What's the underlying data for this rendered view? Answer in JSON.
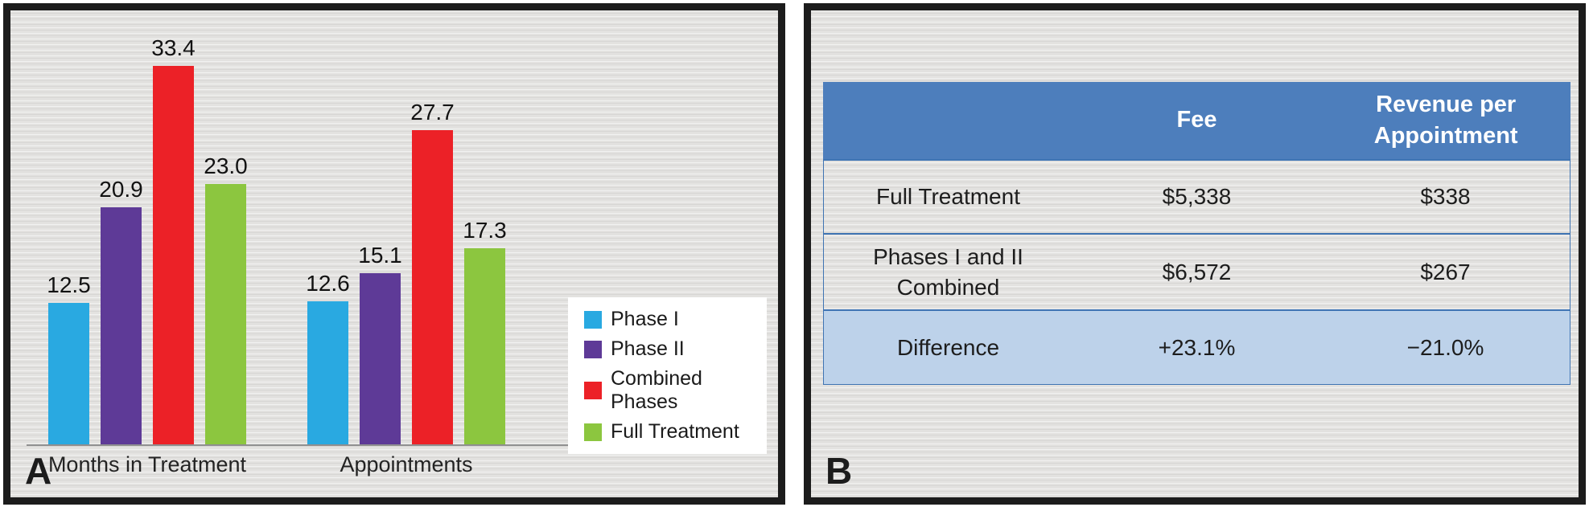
{
  "panel_a": {
    "label": "A"
  },
  "panel_b": {
    "label": "B"
  },
  "colors": {
    "phase1_blue": "#29A9E1",
    "phase2_purple": "#5E3A97",
    "combined_red": "#EC2127",
    "full_treatment_green": "#8CC63F",
    "table_header_blue": "#4D7EBC",
    "table_highlight_blue": "#BDD2EA",
    "table_border_blue": "#3F74B3",
    "panel_background_gray": "#E3E2E0",
    "panel_border_black": "#1C1C1C"
  },
  "chart_data": [
    {
      "type": "bar",
      "title": "",
      "xlabel": "",
      "ylabel": "",
      "categories": [
        "Months in Treatment",
        "Appointments"
      ],
      "series": [
        {
          "name": "Phase I",
          "color": "#29A9E1",
          "values": [
            12.5,
            12.6
          ]
        },
        {
          "name": "Phase II",
          "color": "#5E3A97",
          "values": [
            20.9,
            15.1
          ]
        },
        {
          "name": "Combined Phases",
          "color": "#EC2127",
          "values": [
            33.4,
            27.7
          ]
        },
        {
          "name": "Full Treatment",
          "color": "#8CC63F",
          "values": [
            23.0,
            17.3
          ]
        }
      ],
      "value_labels": true,
      "ylim": [
        0,
        36
      ],
      "grid": false,
      "axis_visible": "x-only",
      "legend_position": "bottom-right-inset"
    },
    {
      "type": "table",
      "columns": [
        "",
        "Fee",
        "Revenue per Appointment"
      ],
      "rows": [
        {
          "label": "Full Treatment",
          "fee": "$5,338",
          "revenue_per_appointment": "$338",
          "highlight": false
        },
        {
          "label": "Phases I and II Combined",
          "fee": "$6,572",
          "revenue_per_appointment": "$267",
          "highlight": false
        },
        {
          "label": "Difference",
          "fee": "+23.1%",
          "revenue_per_appointment": "−21.0%",
          "highlight": true
        }
      ]
    }
  ]
}
